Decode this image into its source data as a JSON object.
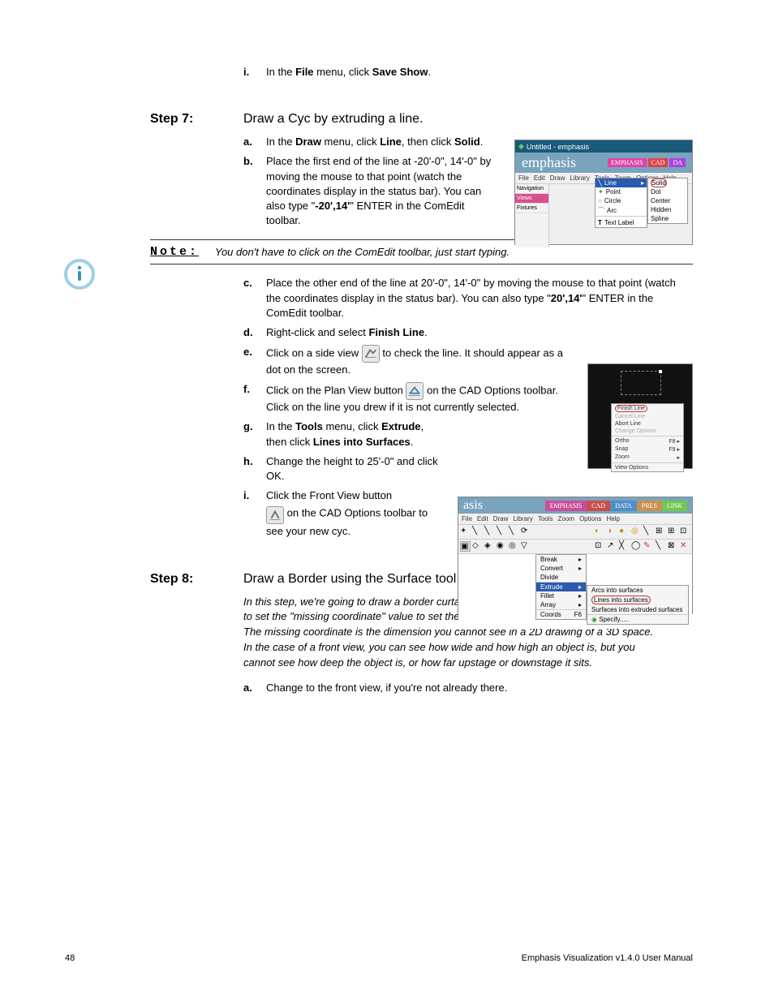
{
  "intro_item": {
    "marker": "i.",
    "text_pre": "In the ",
    "bold1": "File",
    "mid": " menu, click ",
    "bold2": "Save Show",
    "post": "."
  },
  "step7": {
    "label": "Step 7:",
    "title": "Draw a Cyc by extruding a line.",
    "a": {
      "marker": "a.",
      "pre": "In the ",
      "b1": "Draw",
      "mid1": " menu, click ",
      "b2": "Line",
      "mid2": ", then click ",
      "b3": "Solid",
      "post": "."
    },
    "b": {
      "marker": "b.",
      "pre": "Place the first end of the line at -20'-0\", 14'-0\" by moving the mouse to that point (watch the coordinates display in the status bar). You can also type \"",
      "bold": "-20',14'",
      "post": "\" ENTER in the ComEdit toolbar."
    },
    "c": {
      "marker": "c.",
      "pre": "Place the other end of the line at 20'-0\", 14'-0\" by moving the mouse to that point (watch the coordinates display in the status bar). You can also type \"",
      "bold": "20',14'",
      "post": "\" ENTER in the ComEdit toolbar."
    },
    "d": {
      "marker": "d.",
      "pre": "Right-click and select ",
      "bold": "Finish Line",
      "post": "."
    },
    "e": {
      "marker": "e.",
      "pre": "Click on a side view ",
      "post": " to check the line. It should appear as a dot on the screen."
    },
    "f": {
      "marker": "f.",
      "pre": "Click on the Plan View button ",
      "post": " on the CAD Options toolbar. Click on the line you drew if it is not currently selected."
    },
    "g": {
      "marker": "g.",
      "pre": "In the ",
      "b1": "Tools",
      "mid1": " menu, click ",
      "b2": "Extrude",
      "mid2": ", then click ",
      "b3": "Lines into Surfaces",
      "post": "."
    },
    "h": {
      "marker": "h.",
      "text": "Change the height to 25'-0\" and click OK."
    },
    "i": {
      "marker": "i.",
      "pre": "Click the Front View button ",
      "post": " on the CAD Options toolbar to see your new cyc."
    }
  },
  "note": {
    "label": "Note:",
    "text": "You don't have to click on the ComEdit toolbar, just start typing."
  },
  "step8": {
    "label": "Step 8:",
    "title": "Draw a Border using the Surface tool.",
    "intro": "In this step, we're going to draw a border curtain in the front view. To do this, we will need to set the \"missing coordinate\" value to set the upstage/downstage position of the curtain. The missing coordinate is the dimension you cannot see in a 2D drawing of a 3D space. In the case of a front view, you can see how wide and how high an object is, but you cannot see how deep the object is, or how far upstage or downstage it sits.",
    "a": {
      "marker": "a.",
      "text": "Change to the front view, if you're not already there."
    }
  },
  "footer": {
    "page": "48",
    "title": "Emphasis Visualization v1.4.0 User Manual"
  },
  "shot1": {
    "titlebar": "Untitled - emphasis",
    "logo": "emphasis",
    "tabs": [
      "EMPHASIS",
      "CAD",
      "DA"
    ],
    "menubar": [
      "File",
      "Edit",
      "Draw",
      "Library",
      "Tools",
      "Zoom",
      "Options",
      "Help"
    ],
    "side": [
      "Navigation",
      "Views",
      "Fixtures"
    ],
    "drawmenu": [
      "Line",
      "Point",
      "Circle",
      "Arc",
      "Text Label"
    ],
    "submenu": [
      "Solid",
      "Dot",
      "Center",
      "Hidden",
      "Spline"
    ]
  },
  "shot2": {
    "menu_top": [
      "Finish Line",
      "Cancel Line",
      "Abort Line",
      "Change Options"
    ],
    "menu_bot": [
      {
        "l": "Ortho",
        "r": "F8 ▸"
      },
      {
        "l": "Snap",
        "r": "F9 ▸"
      },
      {
        "l": "Zoom",
        "r": "▸"
      }
    ],
    "menu_last": "View Options"
  },
  "shot3": {
    "logo": "asis",
    "tabs": [
      "EMPHASIS",
      "CAD",
      "DATA",
      "PRES",
      "LINK"
    ],
    "tab_colors": [
      "#c94f9a",
      "#c94f4f",
      "#4f8fc9",
      "#c9904f",
      "#6fc94f"
    ],
    "menubar": [
      "File",
      "Edit",
      "Draw",
      "Library",
      "Tools",
      "Zoom",
      "Options",
      "Help"
    ],
    "toolsmenu": [
      {
        "l": "Break",
        "r": "▸"
      },
      {
        "l": "Convert",
        "r": "▸"
      },
      {
        "l": "Divide",
        "r": ""
      },
      {
        "l": "Extrude",
        "r": "▸"
      },
      {
        "l": "Fillet",
        "r": "▸"
      },
      {
        "l": "Array",
        "r": "▸"
      },
      {
        "l": "Coords",
        "r": "F6"
      }
    ],
    "submenu": [
      "Arcs into surfaces",
      "Lines into surfaces",
      "Surfaces into extruded surfaces",
      "Specify....."
    ]
  },
  "colors": {
    "info_ring": "#9dd0e8",
    "info_i": "#3a8fb7",
    "highlight_red": "#c33"
  }
}
